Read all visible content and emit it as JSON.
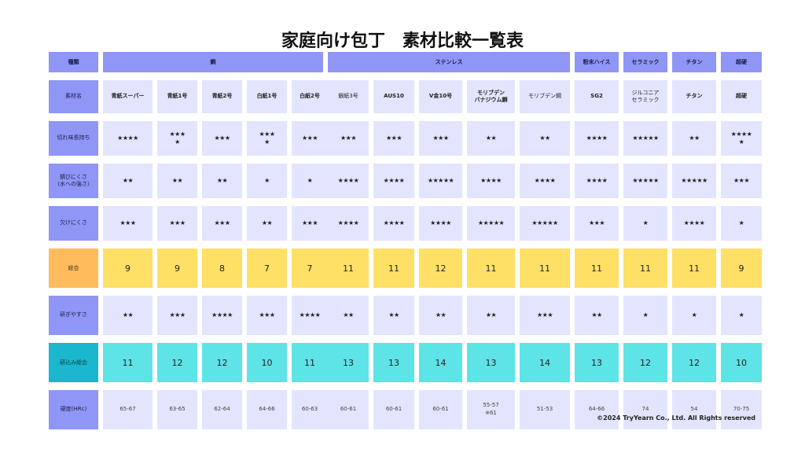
{
  "title": "家庭向け包丁　素材比較一覧表",
  "copyright": "©2024 TryYearn Co., Ltd. All Rights reserved",
  "colors": {
    "header_purple": "#8f96f6",
    "cell_lavender": "#e2e5fd",
    "total_yellow": "#ffe066",
    "total_label_orange": "#ffbb5c",
    "grind_total_cyan": "#5ee3e6",
    "grind_total_label_teal": "#1bb7ce"
  },
  "row_labels": {
    "type": "種類",
    "material": "素材名",
    "sharpness": "切れ味長持ち",
    "rust": "錆びにくさ\n（水への強さ）",
    "chip": "欠けにくさ",
    "total": "総合",
    "ease": "研ぎやすさ",
    "grind_total": "研込み総合",
    "hardness": "硬度(HRc)"
  },
  "groups": {
    "steel": "鋼",
    "stainless": "ステンレス",
    "powder": "粉末ハイス",
    "ceramic": "セラミック",
    "titanium": "チタン",
    "carbide": "超硬"
  },
  "materials": {
    "m1": "青紙スーパー",
    "m2": "青紙1号",
    "m3": "青紙2号",
    "m4": "白紙1号",
    "m5": "白紙2号",
    "m6": "銀紙3号",
    "m7": "AUS10",
    "m8": "V金10号",
    "m9": "モリブデン\nバナジウム鋼",
    "m10": "モリブデン鋼",
    "m11": "SG2",
    "m12": "ジルコニア\nセラミック",
    "m13": "チタン",
    "m14": "超硬"
  },
  "sharpness": {
    "m1": "★★★★",
    "m2": "★★★\n★",
    "m3": "★★★",
    "m4": "★★★\n★",
    "m5": "★★★",
    "m6": "★★★",
    "m7": "★★★",
    "m8": "★★★",
    "m9": "★★",
    "m10": "★★",
    "m11": "★★★★",
    "m12": "★★★★★",
    "m13": "★★",
    "m14": "★★★★\n★"
  },
  "rust": {
    "m1": "★★",
    "m2": "★★",
    "m3": "★★",
    "m4": "★",
    "m5": "★",
    "m6": "★★★★",
    "m7": "★★★★",
    "m8": "★★★★★",
    "m9": "★★★★",
    "m10": "★★★★",
    "m11": "★★★★",
    "m12": "★★★★★",
    "m13": "★★★★★",
    "m14": "★★★"
  },
  "chip": {
    "m1": "★★★",
    "m2": "★★★",
    "m3": "★★★",
    "m4": "★★",
    "m5": "★★★",
    "m6": "★★★★",
    "m7": "★★★★",
    "m8": "★★★★",
    "m9": "★★★★★",
    "m10": "★★★★★",
    "m11": "★★★",
    "m12": "★",
    "m13": "★★★★",
    "m14": "★"
  },
  "total": {
    "m1": "9",
    "m2": "9",
    "m3": "8",
    "m4": "7",
    "m5": "7",
    "m6": "11",
    "m7": "11",
    "m8": "12",
    "m9": "11",
    "m10": "11",
    "m11": "11",
    "m12": "11",
    "m13": "11",
    "m14": "9"
  },
  "ease": {
    "m1": "★★",
    "m2": "★★★",
    "m3": "★★★★",
    "m4": "★★★",
    "m5": "★★★★",
    "m6": "★★",
    "m7": "★★",
    "m8": "★★",
    "m9": "★★",
    "m10": "★★★",
    "m11": "★★",
    "m12": "★",
    "m13": "★",
    "m14": "★"
  },
  "grind_total": {
    "m1": "11",
    "m2": "12",
    "m3": "12",
    "m4": "10",
    "m5": "11",
    "m6": "13",
    "m7": "13",
    "m8": "14",
    "m9": "13",
    "m10": "14",
    "m11": "13",
    "m12": "12",
    "m13": "12",
    "m14": "10"
  },
  "hardness": {
    "m1": "65-67",
    "m2": "63-65",
    "m3": "62-64",
    "m4": "64-66",
    "m5": "60-63",
    "m6": "60-61",
    "m7": "60-61",
    "m8": "60-61",
    "m9": "55-57\n※61",
    "m10": "51-53",
    "m11": "64-66",
    "m12": "74",
    "m13": "54",
    "m14": "70-75"
  }
}
